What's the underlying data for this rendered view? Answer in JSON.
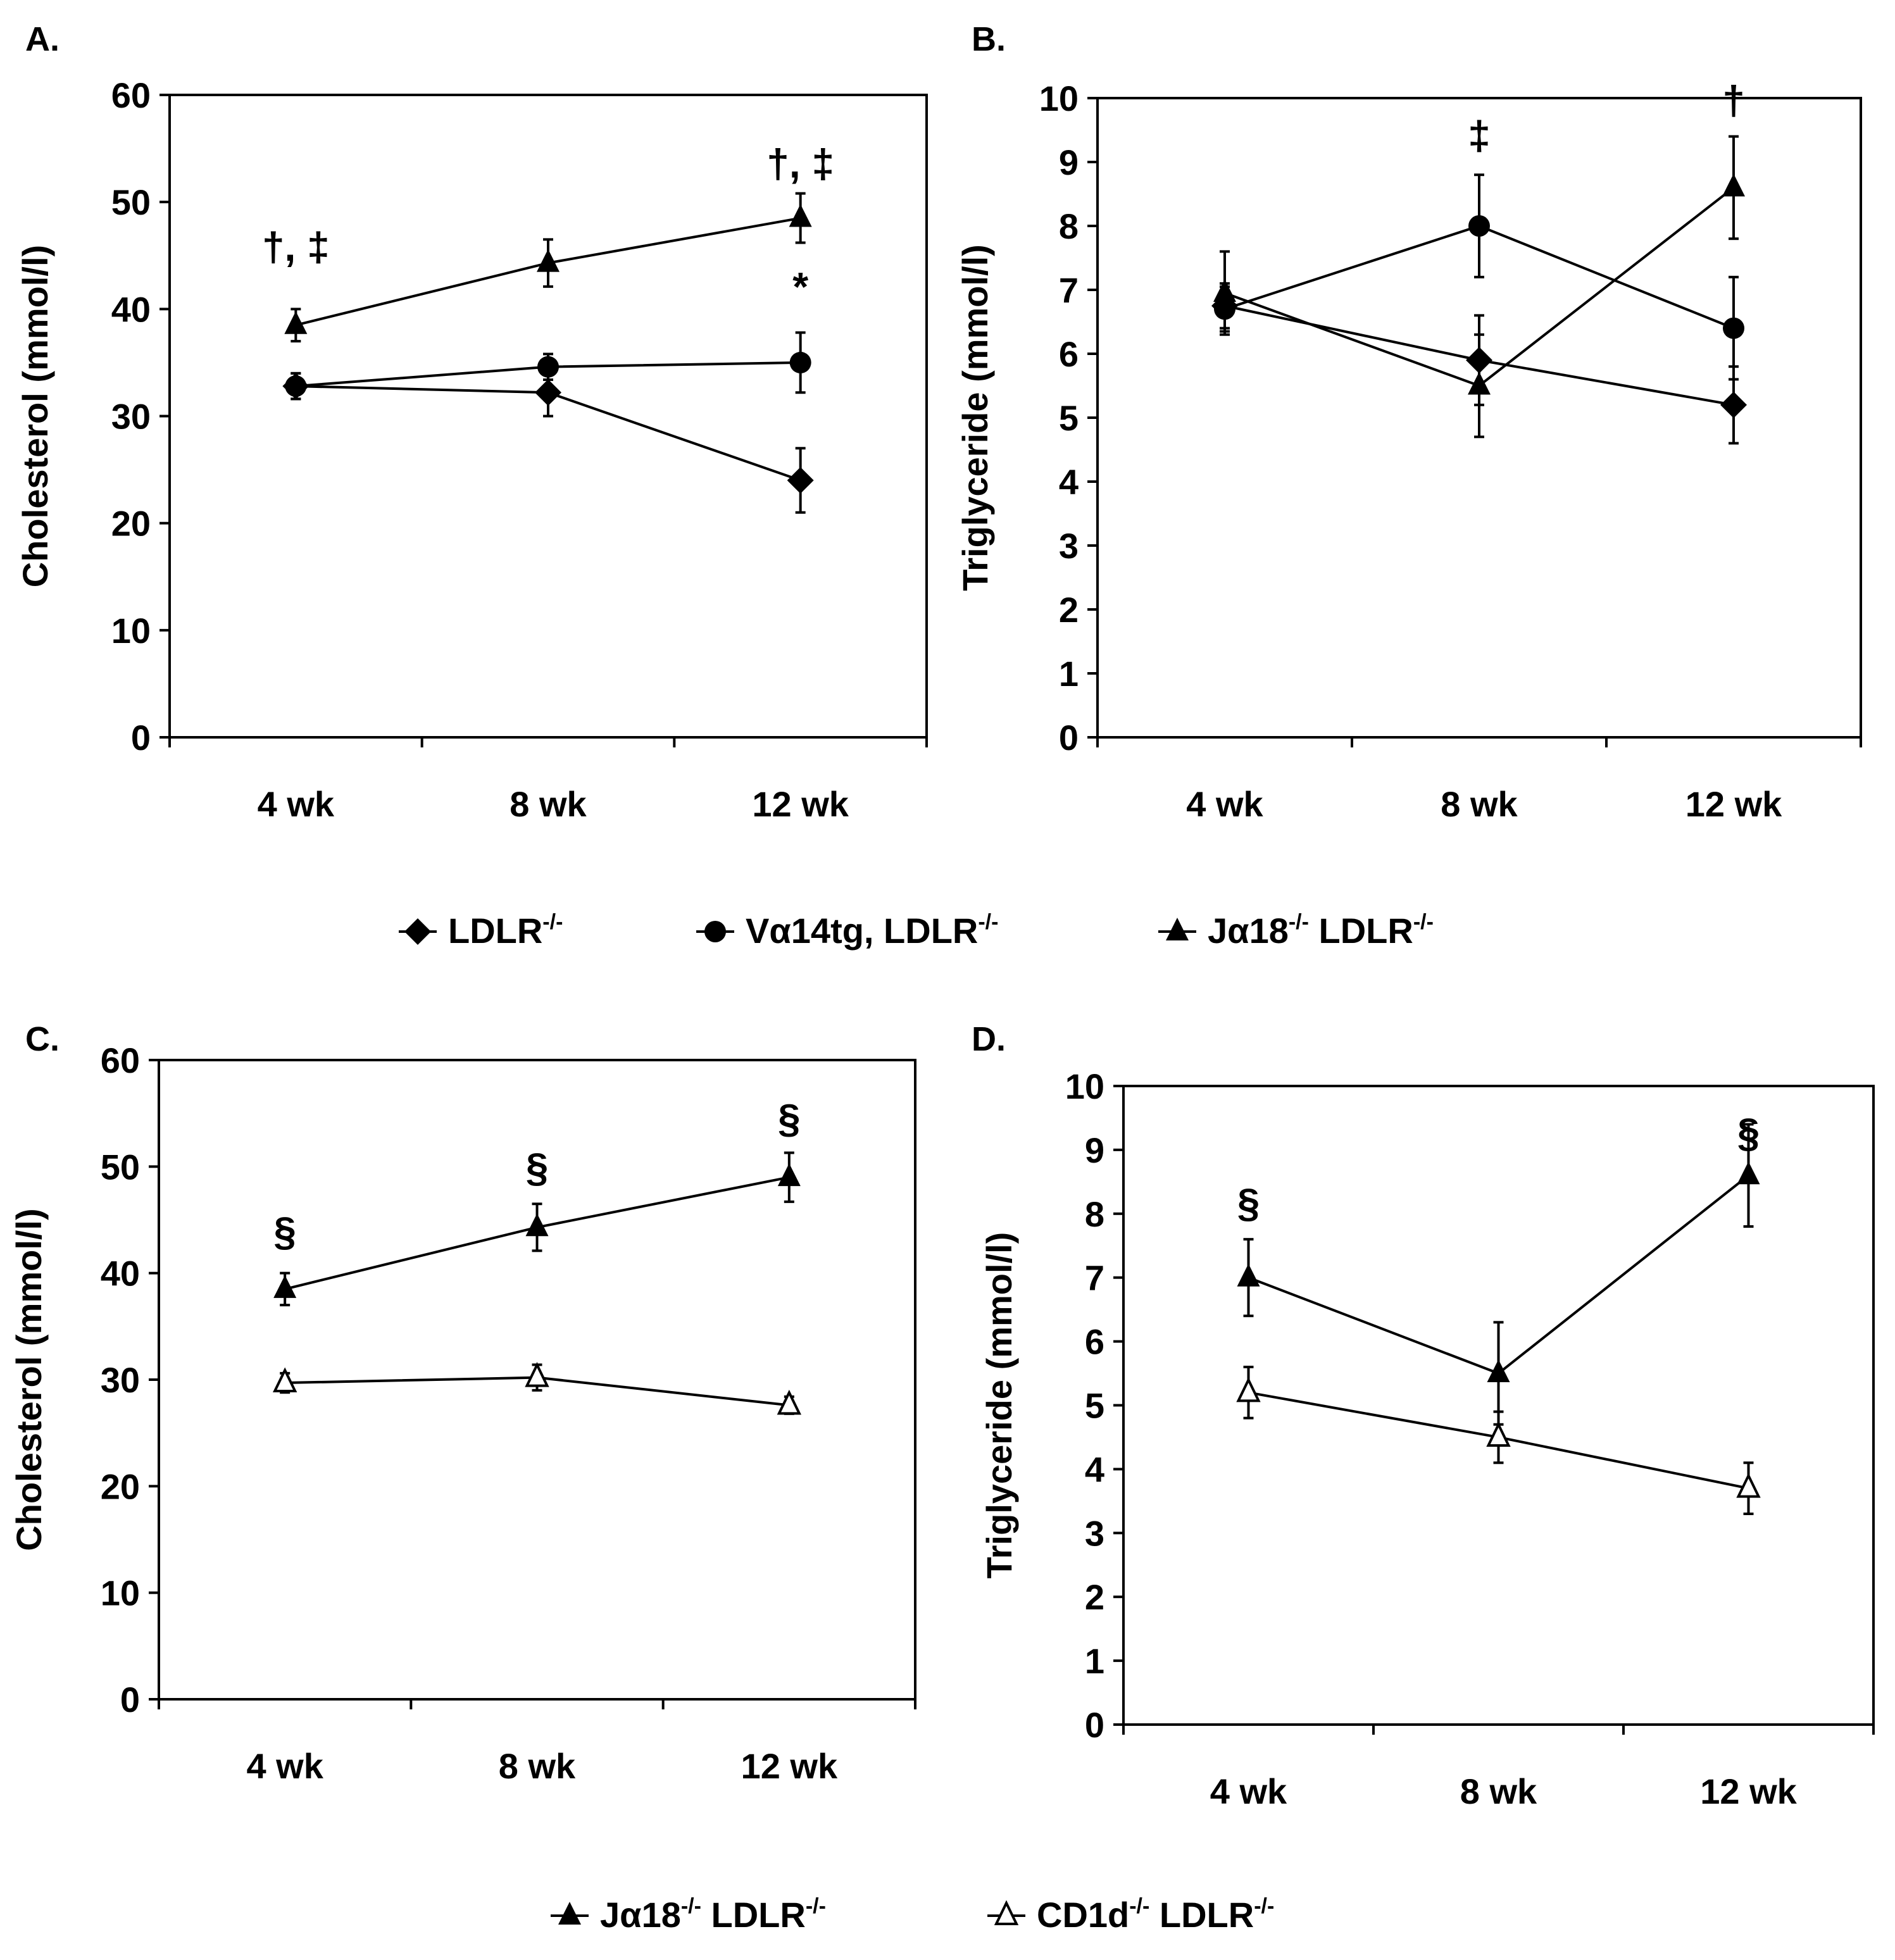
{
  "legend_top": [
    {
      "name": "LDLR",
      "sup": "-/-",
      "marker": "diamond"
    },
    {
      "name": "Vα14tg, LDLR",
      "sup": "-/-",
      "marker": "circle"
    },
    {
      "name": "Jα18",
      "sup": "-/-",
      "name2": " LDLR",
      "sup2": "-/-",
      "marker": "triangle"
    }
  ],
  "legend_bottom": [
    {
      "name": "Jα18",
      "sup": "-/-",
      "name2": " LDLR",
      "sup2": "-/-",
      "marker": "triangle"
    },
    {
      "name": "CD1d",
      "sup": "-/-",
      "name2": " LDLR",
      "sup2": "-/-",
      "marker": "triangle-open"
    }
  ],
  "chart_data": [
    {
      "panel": "A.",
      "type": "line",
      "ylabel": "Cholesterol (mmol/l)",
      "categories": [
        "4 wk",
        "8 wk",
        "12 wk"
      ],
      "ylim": [
        0,
        60
      ],
      "yticks": [
        "0",
        "10",
        "20",
        "30",
        "40",
        "50",
        "60"
      ],
      "series": [
        {
          "name": "LDLR-/-",
          "marker": "diamond",
          "values": [
            32.8,
            32.2,
            24.0
          ],
          "errors": [
            1.2,
            2.2,
            3.0
          ]
        },
        {
          "name": "Vα14tg, LDLR-/-",
          "marker": "circle",
          "values": [
            32.8,
            34.6,
            35.0
          ],
          "errors": [
            1.2,
            1.2,
            2.8
          ]
        },
        {
          "name": "Jα18-/- LDLR-/-",
          "marker": "triangle",
          "values": [
            38.5,
            44.3,
            48.5
          ],
          "errors": [
            1.5,
            2.2,
            2.3
          ]
        }
      ],
      "annotations": [
        {
          "text": "†, ‡",
          "category": 0,
          "y": 44.5
        },
        {
          "text": "*",
          "category": 2,
          "y": 40.8
        },
        {
          "text": "†, ‡",
          "category": 2,
          "y": 52.3
        }
      ]
    },
    {
      "panel": "B.",
      "type": "line",
      "ylabel": "Triglyceride (mmol/l)",
      "categories": [
        "4 wk",
        "8 wk",
        "12 wk"
      ],
      "ylim": [
        0,
        10
      ],
      "yticks": [
        "0",
        "1",
        "2",
        "3",
        "4",
        "5",
        "6",
        "7",
        "8",
        "9",
        "10"
      ],
      "series": [
        {
          "name": "LDLR-/-",
          "marker": "diamond",
          "values": [
            6.75,
            5.9,
            5.2
          ],
          "errors": [
            0.35,
            0.7,
            0.6
          ]
        },
        {
          "name": "Vα14tg, LDLR-/-",
          "marker": "circle",
          "values": [
            6.7,
            8.0,
            6.4
          ],
          "errors": [
            0.35,
            0.8,
            0.8
          ]
        },
        {
          "name": "Jα18-/- LDLR-/-",
          "marker": "triangle",
          "values": [
            6.95,
            5.5,
            8.6
          ],
          "errors": [
            0.65,
            0.8,
            0.8
          ]
        }
      ],
      "annotations": [
        {
          "text": "‡",
          "category": 1,
          "y": 9.2
        },
        {
          "text": "†",
          "category": 2,
          "y": 9.75
        }
      ]
    },
    {
      "panel": "C.",
      "type": "line",
      "ylabel": "Cholesterol (mmol/l)",
      "categories": [
        "4 wk",
        "8 wk",
        "12 wk"
      ],
      "ylim": [
        0,
        60
      ],
      "yticks": [
        "0",
        "10",
        "20",
        "30",
        "40",
        "50",
        "60"
      ],
      "series": [
        {
          "name": "Jα18-/- LDLR-/-",
          "marker": "triangle",
          "values": [
            38.5,
            44.3,
            49.0
          ],
          "errors": [
            1.5,
            2.2,
            2.3
          ]
        },
        {
          "name": "CD1d-/- LDLR-/-",
          "marker": "triangle-open",
          "values": [
            29.7,
            30.2,
            27.6
          ],
          "errors": [
            0.9,
            1.2,
            0.8
          ]
        }
      ],
      "annotations": [
        {
          "text": "§",
          "category": 0,
          "y": 42.6
        },
        {
          "text": "§",
          "category": 1,
          "y": 48.6
        },
        {
          "text": "§",
          "category": 2,
          "y": 53.2
        }
      ]
    },
    {
      "panel": "D.",
      "type": "line",
      "ylabel": "Triglyceride (mmol/l)",
      "categories": [
        "4 wk",
        "8 wk",
        "12 wk"
      ],
      "ylim": [
        0,
        10
      ],
      "yticks": [
        "0",
        "1",
        "2",
        "3",
        "4",
        "5",
        "6",
        "7",
        "8",
        "9",
        "10"
      ],
      "series": [
        {
          "name": "Jα18-/- LDLR-/-",
          "marker": "triangle",
          "values": [
            7.0,
            5.5,
            8.6
          ],
          "errors": [
            0.6,
            0.8,
            0.8
          ]
        },
        {
          "name": "CD1d-/- LDLR-/-",
          "marker": "triangle-open",
          "values": [
            5.2,
            4.5,
            3.7
          ],
          "errors": [
            0.4,
            0.4,
            0.4
          ]
        }
      ],
      "annotations": [
        {
          "text": "§",
          "category": 0,
          "y": 7.95
        },
        {
          "text": "§",
          "category": 2,
          "y": 9.05
        }
      ]
    }
  ]
}
